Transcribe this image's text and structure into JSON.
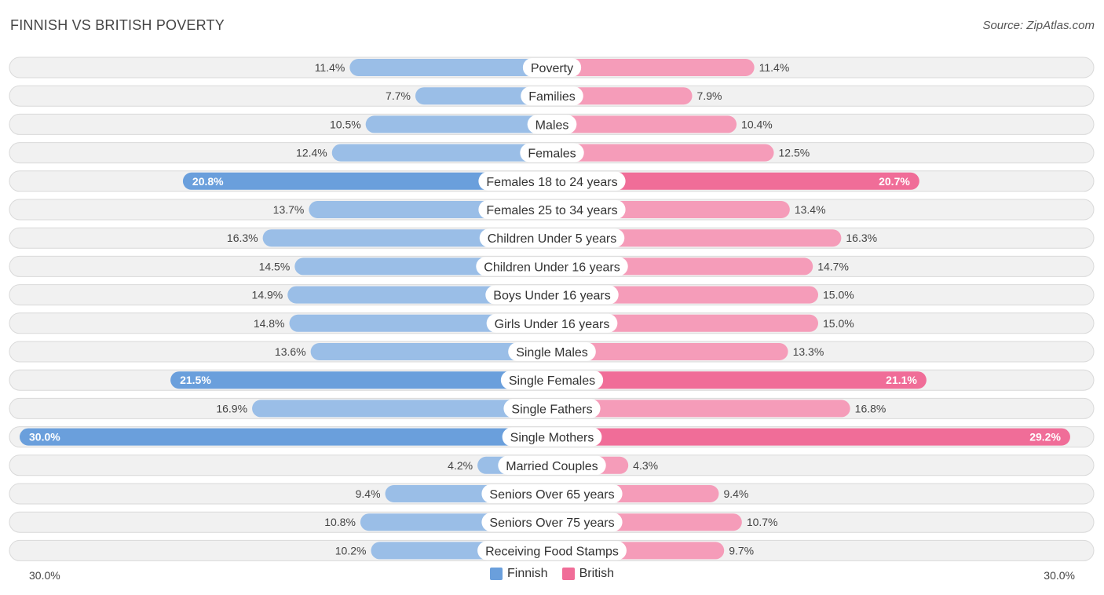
{
  "header": {
    "title": "FINNISH VS BRITISH POVERTY",
    "source": "Source: ZipAtlas.com"
  },
  "axis": {
    "left_label": "30.0%",
    "right_label": "30.0%"
  },
  "legend": {
    "finnish": {
      "label": "Finnish",
      "color": "#6a9fdc"
    },
    "british": {
      "label": "British",
      "color": "#f06d98"
    }
  },
  "chart_data": {
    "type": "bar",
    "title": "FINNISH VS BRITISH POVERTY",
    "orientation": "horizontal-diverging",
    "max": 30.0,
    "categories": [
      "Poverty",
      "Families",
      "Males",
      "Females",
      "Females 18 to 24 years",
      "Females 25 to 34 years",
      "Children Under 5 years",
      "Children Under 16 years",
      "Boys Under 16 years",
      "Girls Under 16 years",
      "Single Males",
      "Single Females",
      "Single Fathers",
      "Single Mothers",
      "Married Couples",
      "Seniors Over 65 years",
      "Seniors Over 75 years",
      "Receiving Food Stamps"
    ],
    "series": [
      {
        "name": "Finnish",
        "values": [
          11.4,
          7.7,
          10.5,
          12.4,
          20.8,
          13.7,
          16.3,
          14.5,
          14.9,
          14.8,
          13.6,
          21.5,
          16.9,
          30.0,
          4.2,
          9.4,
          10.8,
          10.2
        ],
        "labels": [
          "11.4%",
          "7.7%",
          "10.5%",
          "12.4%",
          "20.8%",
          "13.7%",
          "16.3%",
          "14.5%",
          "14.9%",
          "14.8%",
          "13.6%",
          "21.5%",
          "16.9%",
          "30.0%",
          "4.2%",
          "9.4%",
          "10.8%",
          "10.2%"
        ]
      },
      {
        "name": "British",
        "values": [
          11.4,
          7.9,
          10.4,
          12.5,
          20.7,
          13.4,
          16.3,
          14.7,
          15.0,
          15.0,
          13.3,
          21.1,
          16.8,
          29.2,
          4.3,
          9.4,
          10.7,
          9.7
        ],
        "labels": [
          "11.4%",
          "7.9%",
          "10.4%",
          "12.5%",
          "20.7%",
          "13.4%",
          "16.3%",
          "14.7%",
          "15.0%",
          "15.0%",
          "13.3%",
          "21.1%",
          "16.8%",
          "29.2%",
          "4.3%",
          "9.4%",
          "10.7%",
          "9.7%"
        ]
      }
    ]
  }
}
